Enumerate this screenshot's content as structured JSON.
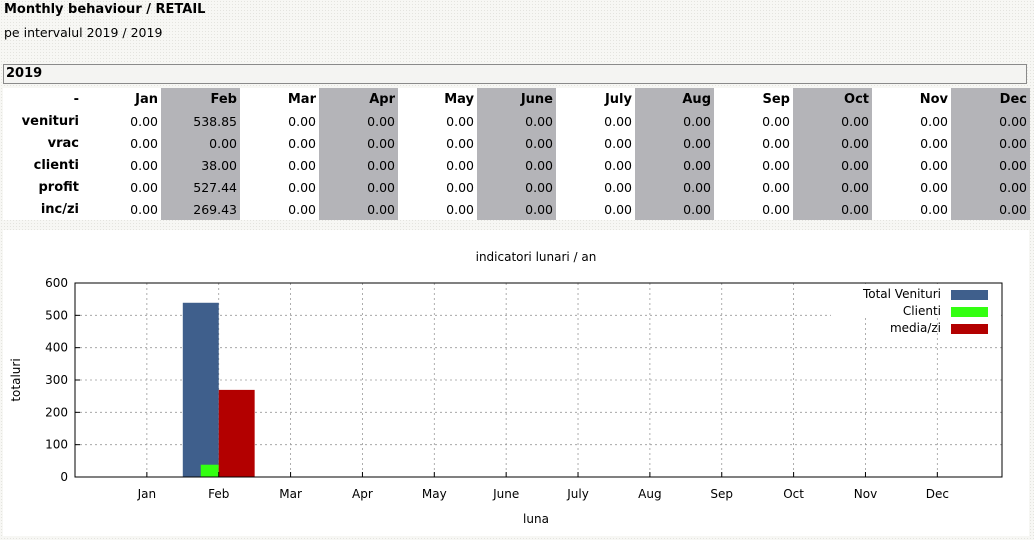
{
  "header": {
    "title": "Monthly behaviour / RETAIL",
    "subtitle": "pe intervalul 2019 / 2019"
  },
  "year_label": "2019",
  "table": {
    "corner": "-",
    "months": [
      "Jan",
      "Feb",
      "Mar",
      "Apr",
      "May",
      "June",
      "July",
      "Aug",
      "Sep",
      "Oct",
      "Nov",
      "Dec"
    ],
    "rows": [
      {
        "label": "venituri",
        "values": [
          "0.00",
          "538.85",
          "0.00",
          "0.00",
          "0.00",
          "0.00",
          "0.00",
          "0.00",
          "0.00",
          "0.00",
          "0.00",
          "0.00"
        ]
      },
      {
        "label": "vrac",
        "values": [
          "0.00",
          "0.00",
          "0.00",
          "0.00",
          "0.00",
          "0.00",
          "0.00",
          "0.00",
          "0.00",
          "0.00",
          "0.00",
          "0.00"
        ]
      },
      {
        "label": "clienti",
        "values": [
          "0.00",
          "38.00",
          "0.00",
          "0.00",
          "0.00",
          "0.00",
          "0.00",
          "0.00",
          "0.00",
          "0.00",
          "0.00",
          "0.00"
        ]
      },
      {
        "label": "profit",
        "values": [
          "0.00",
          "527.44",
          "0.00",
          "0.00",
          "0.00",
          "0.00",
          "0.00",
          "0.00",
          "0.00",
          "0.00",
          "0.00",
          "0.00"
        ]
      },
      {
        "label": "inc/zi",
        "values": [
          "0.00",
          "269.43",
          "0.00",
          "0.00",
          "0.00",
          "0.00",
          "0.00",
          "0.00",
          "0.00",
          "0.00",
          "0.00",
          "0.00"
        ]
      }
    ]
  },
  "chart_data": {
    "type": "bar",
    "title": "indicatori lunari / an",
    "xlabel": "luna",
    "ylabel": "totaluri",
    "categories": [
      "Jan",
      "Feb",
      "Mar",
      "Apr",
      "May",
      "June",
      "July",
      "Aug",
      "Sep",
      "Oct",
      "Nov",
      "Dec"
    ],
    "category_tick_labels": [
      "Jan",
      "Feb",
      "Mar",
      "Apr",
      "May",
      "June",
      "July",
      "Aug",
      "Sep",
      "Oct",
      "Nov",
      "Dec"
    ],
    "ylim": [
      0,
      600
    ],
    "yticks": [
      0,
      100,
      200,
      300,
      400,
      500,
      600
    ],
    "grid": true,
    "legend_position": "top-right",
    "series": [
      {
        "name": "Total Venituri",
        "color": "#3f5f8c",
        "values": [
          0,
          538.85,
          0,
          0,
          0,
          0,
          0,
          0,
          0,
          0,
          0,
          0
        ]
      },
      {
        "name": "Clienti",
        "color": "#33ff11",
        "values": [
          0,
          38,
          0,
          0,
          0,
          0,
          0,
          0,
          0,
          0,
          0,
          0
        ]
      },
      {
        "name": "media/zi",
        "color": "#b30000",
        "values": [
          0,
          269.43,
          0,
          0,
          0,
          0,
          0,
          0,
          0,
          0,
          0,
          0
        ]
      }
    ]
  }
}
